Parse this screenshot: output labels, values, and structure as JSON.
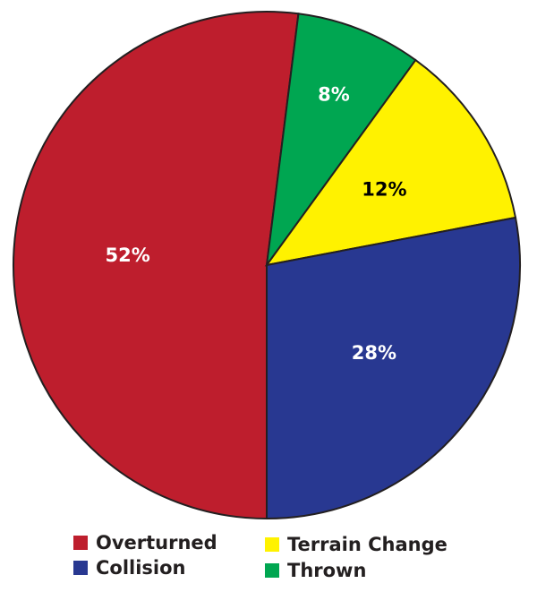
{
  "chart_data": {
    "type": "pie",
    "categories": [
      "Overturned",
      "Thrown",
      "Terrain Change",
      "Collision"
    ],
    "values": [
      52,
      8,
      12,
      28
    ],
    "value_labels": [
      "52%",
      "8%",
      "12%",
      "28%"
    ],
    "colors": [
      "#be1e2d",
      "#00a651",
      "#fff200",
      "#283891"
    ]
  }
}
